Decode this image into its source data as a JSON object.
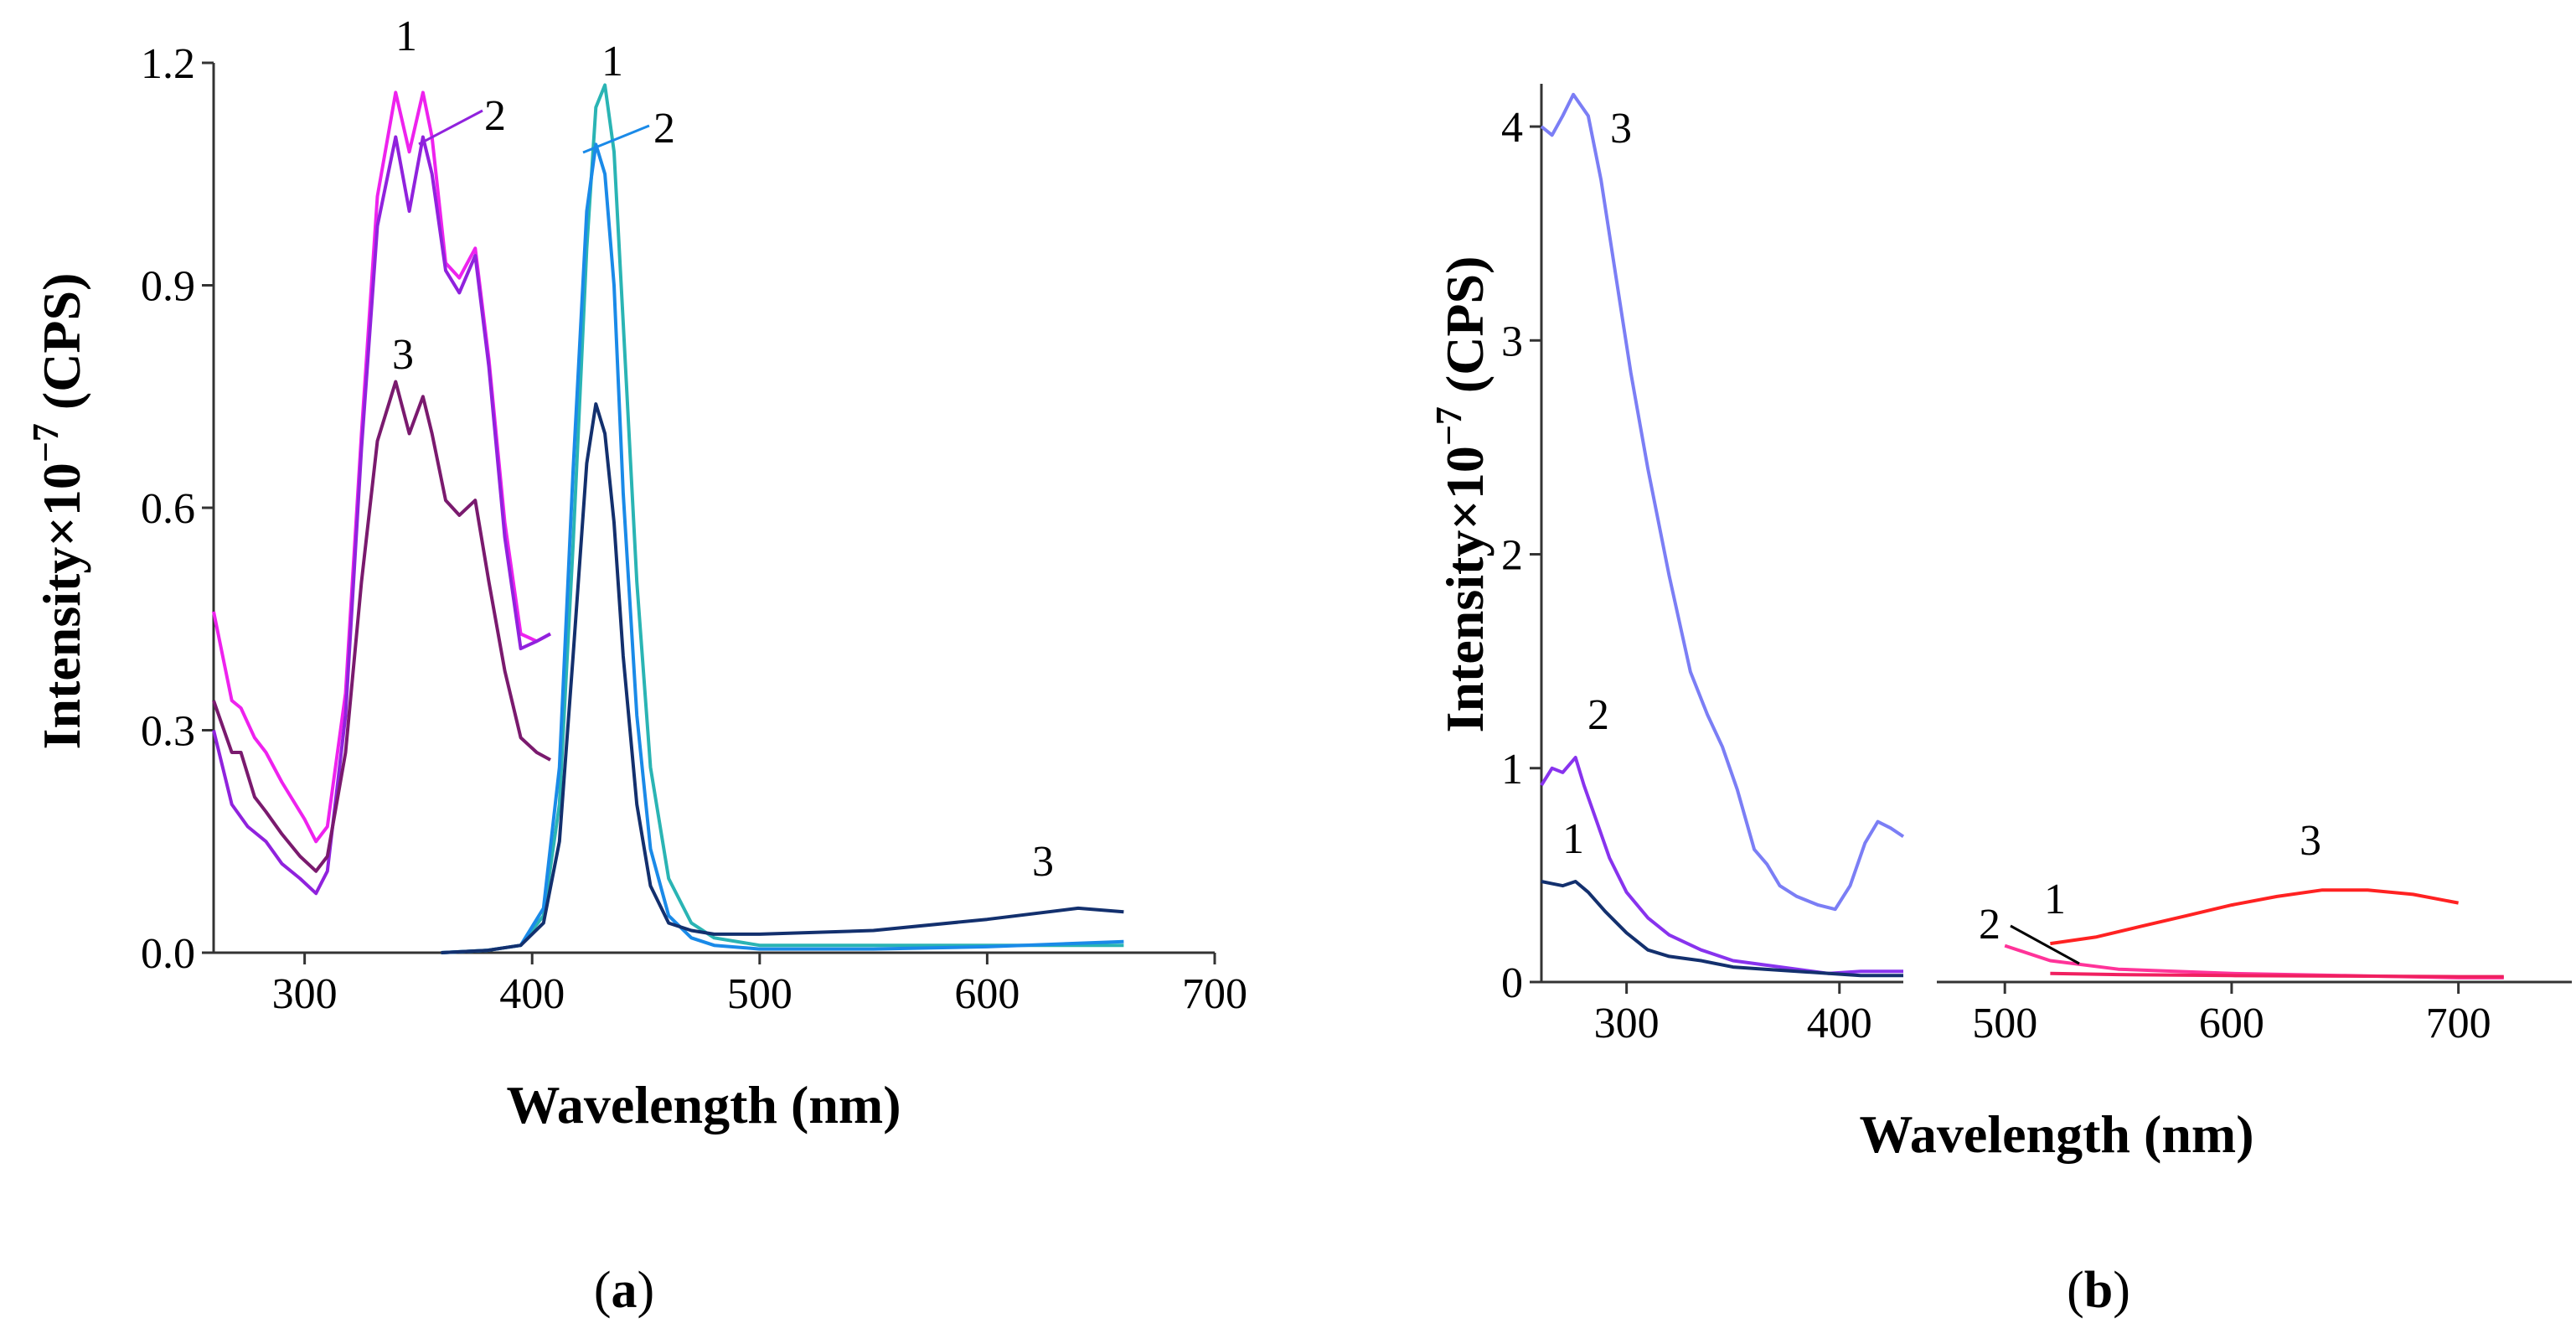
{
  "chart_data": [
    {
      "type": "line",
      "panel": "a",
      "panel_label": "a",
      "xlabel": "Wavelength (nm)",
      "ylabel": "Intensity×10−7 (CPS)",
      "ylabel_main": "Intensity×10",
      "ylabel_exp": "−7",
      "ylabel_unit": " (CPS)",
      "xlim": [
        260,
        700
      ],
      "ylim": [
        0,
        1.2
      ],
      "xticks": [
        300,
        400,
        500,
        600,
        700
      ],
      "yticks": [
        0.0,
        0.3,
        0.6,
        0.9,
        1.2
      ],
      "ytick_labels": [
        "0.0",
        "0.3",
        "0.6",
        "0.9",
        "1.2"
      ],
      "series": [
        {
          "name": "1",
          "kind": "excitation",
          "color": "#ee22ee",
          "x": [
            260,
            268,
            272,
            278,
            283,
            290,
            300,
            305,
            310,
            318,
            325,
            332,
            340,
            346,
            352,
            356,
            362,
            368,
            375,
            381,
            388,
            395,
            402,
            408
          ],
          "y": [
            0.46,
            0.34,
            0.33,
            0.29,
            0.27,
            0.23,
            0.18,
            0.15,
            0.17,
            0.35,
            0.7,
            1.02,
            1.16,
            1.08,
            1.16,
            1.1,
            0.93,
            0.91,
            0.95,
            0.8,
            0.58,
            0.43,
            0.42,
            0.43
          ]
        },
        {
          "name": "2",
          "kind": "excitation",
          "color": "#9022dd",
          "x": [
            260,
            268,
            275,
            283,
            290,
            298,
            305,
            310,
            318,
            325,
            332,
            340,
            346,
            352,
            356,
            362,
            368,
            375,
            381,
            388,
            395,
            402,
            408
          ],
          "y": [
            0.3,
            0.2,
            0.17,
            0.15,
            0.12,
            0.1,
            0.08,
            0.11,
            0.32,
            0.68,
            0.98,
            1.1,
            1.0,
            1.1,
            1.05,
            0.92,
            0.89,
            0.94,
            0.79,
            0.56,
            0.41,
            0.42,
            0.43
          ]
        },
        {
          "name": "3",
          "kind": "excitation",
          "color": "#7a1a6e",
          "x": [
            260,
            268,
            272,
            278,
            283,
            290,
            298,
            305,
            310,
            318,
            325,
            332,
            340,
            346,
            352,
            356,
            362,
            368,
            375,
            381,
            388,
            395,
            402,
            408
          ],
          "y": [
            0.34,
            0.27,
            0.27,
            0.21,
            0.19,
            0.16,
            0.13,
            0.11,
            0.13,
            0.27,
            0.5,
            0.69,
            0.77,
            0.7,
            0.75,
            0.7,
            0.61,
            0.59,
            0.61,
            0.5,
            0.38,
            0.29,
            0.27,
            0.26
          ]
        },
        {
          "name": "1",
          "kind": "emission",
          "color": "#2ab4b4",
          "x": [
            360,
            380,
            395,
            405,
            412,
            418,
            424,
            428,
            432,
            436,
            440,
            446,
            452,
            460,
            470,
            480,
            500,
            550,
            600,
            660
          ],
          "y": [
            0.0,
            0.003,
            0.01,
            0.05,
            0.2,
            0.55,
            0.95,
            1.14,
            1.17,
            1.08,
            0.85,
            0.5,
            0.25,
            0.1,
            0.04,
            0.02,
            0.01,
            0.01,
            0.01,
            0.01
          ]
        },
        {
          "name": "2",
          "kind": "emission",
          "color": "#1a8ae8",
          "x": [
            360,
            380,
            395,
            405,
            412,
            418,
            424,
            428,
            432,
            436,
            440,
            446,
            452,
            460,
            470,
            480,
            500,
            550,
            600,
            660
          ],
          "y": [
            0.0,
            0.003,
            0.01,
            0.06,
            0.25,
            0.65,
            1.0,
            1.09,
            1.05,
            0.9,
            0.62,
            0.32,
            0.14,
            0.05,
            0.02,
            0.01,
            0.005,
            0.005,
            0.008,
            0.015
          ]
        },
        {
          "name": "3",
          "kind": "emission",
          "color": "#13306e",
          "x": [
            360,
            380,
            395,
            405,
            412,
            418,
            424,
            428,
            432,
            436,
            440,
            446,
            452,
            460,
            470,
            480,
            500,
            550,
            600,
            640,
            660
          ],
          "y": [
            0.0,
            0.003,
            0.01,
            0.04,
            0.15,
            0.4,
            0.66,
            0.74,
            0.7,
            0.58,
            0.4,
            0.2,
            0.09,
            0.04,
            0.03,
            0.025,
            0.025,
            0.03,
            0.045,
            0.06,
            0.055
          ]
        }
      ]
    },
    {
      "type": "line",
      "panel": "b",
      "panel_label": "b",
      "xlabel": "Wavelength (nm)",
      "ylabel": "Intensity×10−7 (CPS)",
      "ylabel_main": "Intensity×10",
      "ylabel_exp": "−7",
      "ylabel_unit": " (CPS)",
      "xlim": [
        260,
        750
      ],
      "axis_break": [
        430,
        470
      ],
      "ylim": [
        0,
        4.2
      ],
      "xticks": [
        300,
        400,
        500,
        600,
        700
      ],
      "yticks": [
        0,
        1,
        2,
        3,
        4
      ],
      "ytick_labels": [
        "0",
        "1",
        "2",
        "3",
        "4"
      ],
      "series": [
        {
          "name": "3",
          "kind": "excitation",
          "color": "#7b7ef5",
          "x": [
            260,
            265,
            270,
            275,
            282,
            288,
            295,
            302,
            310,
            320,
            330,
            338,
            345,
            352,
            360,
            366,
            372,
            380,
            390,
            398,
            405,
            412,
            418,
            424,
            430
          ],
          "y": [
            4.0,
            3.96,
            4.05,
            4.15,
            4.05,
            3.75,
            3.3,
            2.85,
            2.4,
            1.9,
            1.45,
            1.25,
            1.1,
            0.9,
            0.62,
            0.55,
            0.45,
            0.4,
            0.36,
            0.34,
            0.45,
            0.65,
            0.75,
            0.72,
            0.68
          ]
        },
        {
          "name": "2",
          "kind": "excitation",
          "color": "#8833ee",
          "x": [
            260,
            265,
            270,
            276,
            280,
            286,
            292,
            300,
            310,
            320,
            335,
            350,
            365,
            380,
            395,
            410,
            420,
            430
          ],
          "y": [
            0.92,
            1.0,
            0.98,
            1.05,
            0.92,
            0.75,
            0.58,
            0.42,
            0.3,
            0.22,
            0.15,
            0.1,
            0.08,
            0.06,
            0.04,
            0.05,
            0.05,
            0.05
          ]
        },
        {
          "name": "1",
          "kind": "excitation",
          "color": "#13306e",
          "x": [
            260,
            265,
            270,
            276,
            282,
            290,
            300,
            310,
            320,
            335,
            350,
            365,
            380,
            395,
            410,
            420,
            430
          ],
          "y": [
            0.47,
            0.46,
            0.45,
            0.47,
            0.42,
            0.33,
            0.23,
            0.15,
            0.12,
            0.1,
            0.07,
            0.06,
            0.05,
            0.04,
            0.03,
            0.03,
            0.03
          ]
        },
        {
          "name": "1",
          "kind": "emission",
          "color": "#ff3399",
          "x": [
            500,
            520,
            550,
            600,
            650,
            700,
            720
          ],
          "y": [
            0.17,
            0.1,
            0.06,
            0.04,
            0.03,
            0.02,
            0.02
          ]
        },
        {
          "name": "2",
          "kind": "emission",
          "color": "#f02060",
          "x": [
            520,
            550,
            600,
            650,
            700,
            720
          ],
          "y": [
            0.04,
            0.035,
            0.03,
            0.028,
            0.025,
            0.025
          ]
        },
        {
          "name": "3",
          "kind": "emission",
          "color": "#ff2222",
          "x": [
            520,
            540,
            560,
            580,
            600,
            620,
            640,
            660,
            680,
            700
          ],
          "y": [
            0.18,
            0.21,
            0.26,
            0.31,
            0.36,
            0.4,
            0.43,
            0.43,
            0.41,
            0.37
          ]
        }
      ]
    }
  ]
}
